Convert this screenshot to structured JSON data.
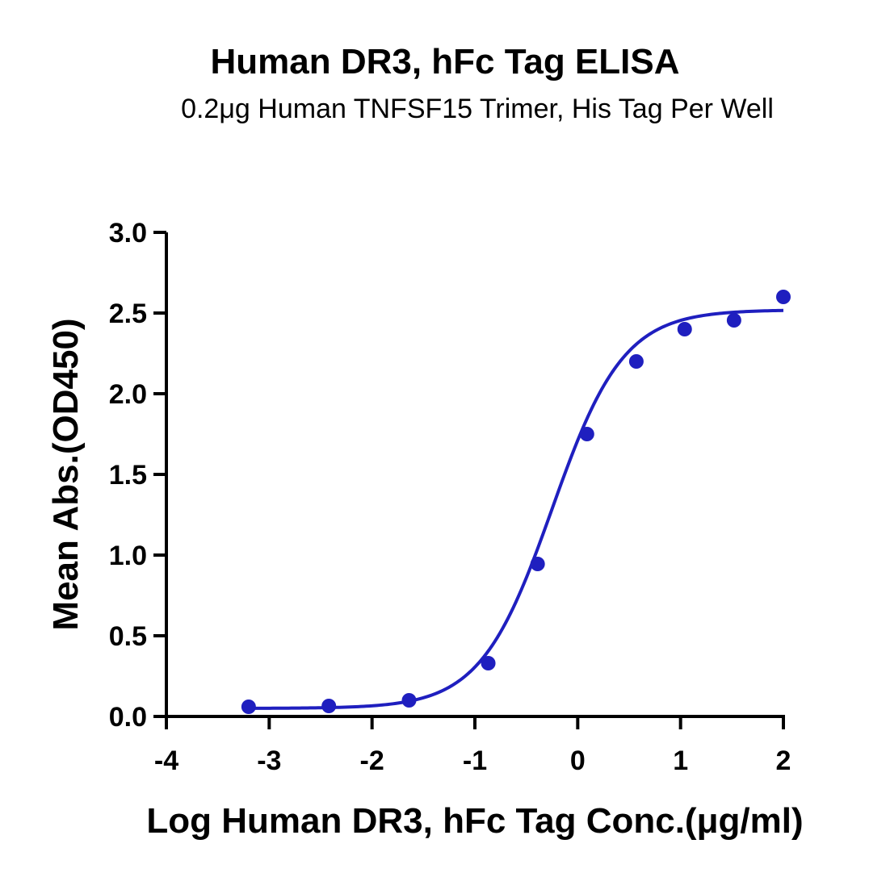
{
  "chart_data": {
    "type": "scatter",
    "title": "Human DR3, hFc Tag ELISA",
    "subtitle": "0.2μg Human TNFSF15 Trimer, His Tag Per Well",
    "xlabel": "Log Human DR3, hFc Tag Conc.(μg/ml)",
    "ylabel": "Mean Abs.(OD450)",
    "xlim": [
      -4,
      2
    ],
    "ylim": [
      0,
      3
    ],
    "x_ticks": [
      -4,
      -3,
      -2,
      -1,
      0,
      1,
      2
    ],
    "x_tick_labels": [
      "-4",
      "-3",
      "-2",
      "-1",
      "0",
      "1",
      "2"
    ],
    "y_ticks": [
      0,
      0.5,
      1,
      1.5,
      2,
      2.5,
      3
    ],
    "y_tick_labels": [
      "0.0",
      "0.5",
      "1.0",
      "1.5",
      "2.0",
      "2.5",
      "3.0"
    ],
    "grid": false,
    "color": "#1f1fbf",
    "series": [
      {
        "points": [
          {
            "x": -3.2,
            "y": 0.06
          },
          {
            "x": -2.42,
            "y": 0.065
          },
          {
            "x": -1.64,
            "y": 0.1
          },
          {
            "x": -0.87,
            "y": 0.33
          },
          {
            "x": -0.39,
            "y": 0.945
          },
          {
            "x": 0.09,
            "y": 1.75
          },
          {
            "x": 0.57,
            "y": 2.2
          },
          {
            "x": 1.04,
            "y": 2.4
          },
          {
            "x": 1.52,
            "y": 2.455
          },
          {
            "x": 2.0,
            "y": 2.6
          }
        ],
        "fit": {
          "bottom": 0.05,
          "top": 2.52,
          "logEC50": -0.25,
          "hill": 1.25
        }
      }
    ]
  }
}
